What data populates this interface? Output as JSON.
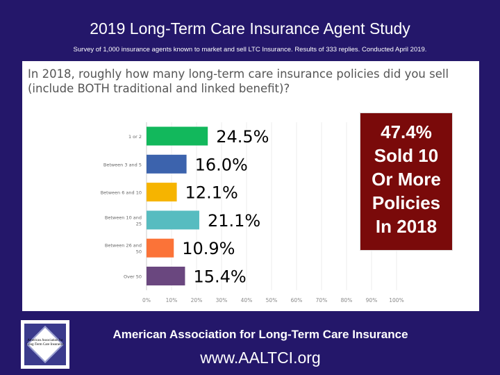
{
  "header": {
    "title": "2019 Long-Term Care Insurance Agent Study",
    "subtitle": "Survey of 1,000  insurance agents known to market and sell LTC Insurance.  Results of 333 replies.  Conducted April 2019."
  },
  "callout": {
    "lines": [
      "47.4%",
      "Sold 10",
      "Or More",
      "Policies",
      "In 2018"
    ]
  },
  "footer": {
    "org": "American Association for Long-Term Care Insurance",
    "url": "www.AALTCI.org",
    "logo_text": "American Association for Long-Term Care Insurance"
  },
  "chart_data": {
    "type": "bar",
    "orientation": "horizontal",
    "title": "In 2018, roughly how many long-term care insurance policies did you sell (include BOTH traditional and linked benefit)?",
    "categories": [
      "1 or 2",
      "Between 3 and 5",
      "Between 6 and 10",
      "Between 10 and 25",
      "Between 26 and 50",
      "Over 50"
    ],
    "values": [
      24.5,
      16.0,
      12.1,
      21.1,
      10.9,
      15.4
    ],
    "data_labels": [
      "24.5%",
      "16.0%",
      "12.1%",
      "21.1%",
      "10.9%",
      "15.4%"
    ],
    "colors": [
      "#12b85c",
      "#3c63ad",
      "#f6b400",
      "#57bcc0",
      "#fb7338",
      "#6a477f"
    ],
    "xlim": [
      0,
      100
    ],
    "xticks": [
      "0%",
      "10%",
      "20%",
      "30%",
      "40%",
      "50%",
      "60%",
      "70%",
      "80%",
      "90%",
      "100%"
    ],
    "grid": true
  }
}
